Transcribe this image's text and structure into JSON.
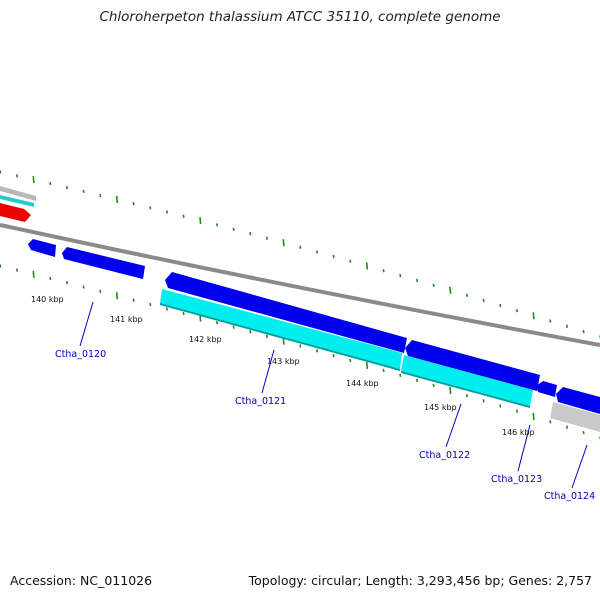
{
  "title": "Chloroherpeton thalassium ATCC 35110, complete genome",
  "footer": {
    "accession": "Accession: NC_011026",
    "stats": "Topology: circular; Length: 3,293,456 bp; Genes: 2,757"
  },
  "colors": {
    "forward_gene": "#0000ee",
    "forward_cds": "#00e8e8",
    "backbone": "#8a8a8a",
    "ticks": "#1f8a1f",
    "red_feature": "#ee0000",
    "label": "#0000bb"
  },
  "scale": {
    "labels": [
      {
        "text": "140 kbp"
      },
      {
        "text": "141 kbp"
      },
      {
        "text": "142 kbp"
      },
      {
        "text": "143 kbp"
      },
      {
        "text": "144 kbp"
      },
      {
        "text": "145 kbp"
      },
      {
        "text": "146 kbp"
      }
    ]
  },
  "genes": [
    {
      "label": "Ctha_0120"
    },
    {
      "label": "Ctha_0121"
    },
    {
      "label": "Ctha_0122"
    },
    {
      "label": "Ctha_0123"
    },
    {
      "label": "Ctha_0124"
    }
  ]
}
